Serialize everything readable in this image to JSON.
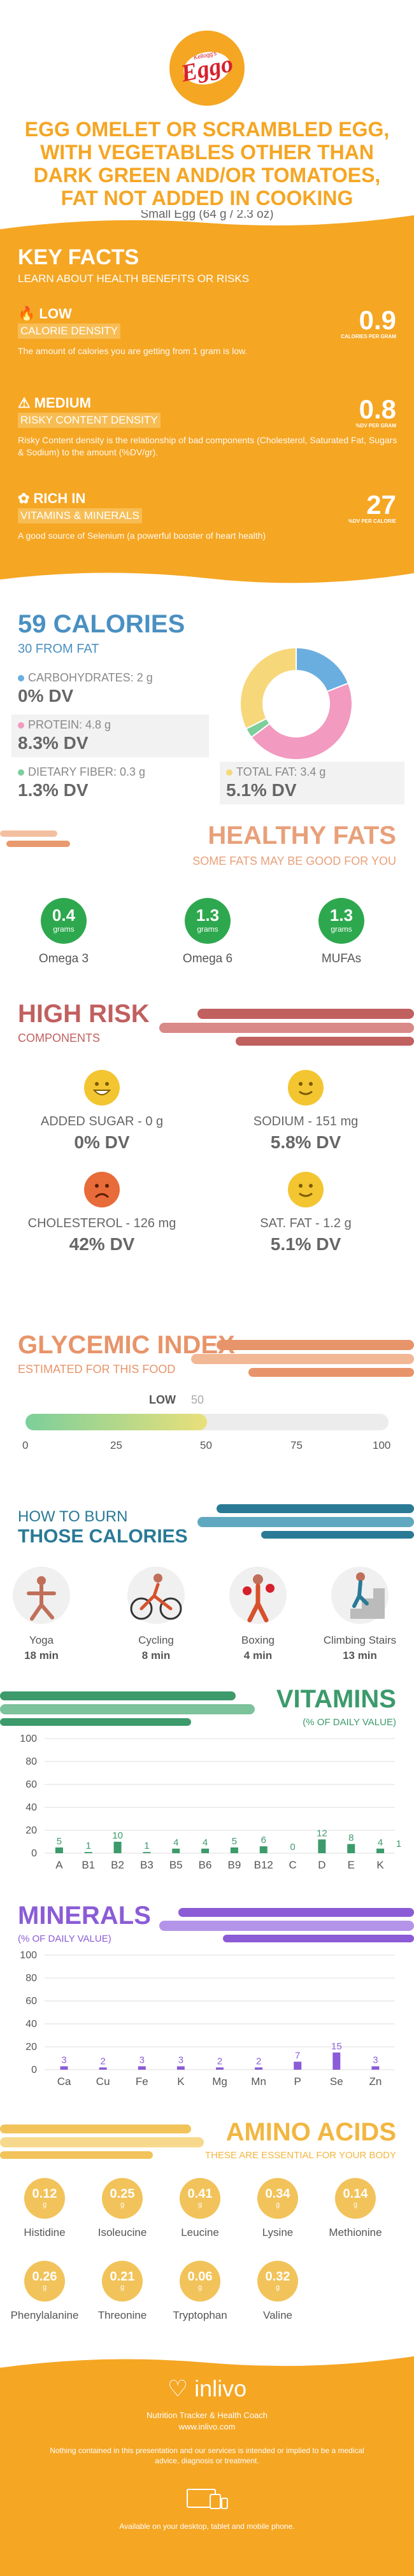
{
  "header": {
    "logo_text": "Eggo",
    "logo_small": "Kellogg's",
    "title": "EGG OMELET OR SCRAMBLED EGG, WITH VEGETABLES OTHER THAN DARK GREEN AND/OR TOMATOES, FAT NOT ADDED IN COOKING",
    "serving": "Small Egg (64 g / 2.3 oz)"
  },
  "key_facts": {
    "title": "KEY FACTS",
    "subtitle": "LEARN ABOUT HEALTH BENEFITS OR RISKS",
    "items": [
      {
        "icon": "flame-icon",
        "level": "LOW",
        "label": "CALORIE DENSITY",
        "desc": "The amount of calories you are getting from 1 gram is low.",
        "value": "0.9",
        "unit": "CALORIES PER GRAM"
      },
      {
        "icon": "warning-icon",
        "level": "MEDIUM",
        "label": "RISKY CONTENT DENSITY",
        "desc": "Risky Content density is the relationship of bad components (Cholesterol, Saturated Fat, Sugars & Sodium) to the amount (%DV/gr).",
        "value": "0.8",
        "unit": "%DV PER GRAM"
      },
      {
        "icon": "leaf-icon",
        "level": "RICH IN",
        "label": "VITAMINS & MINERALS",
        "desc": "A good source of Selenium (a powerful booster of heart health)",
        "value": "27",
        "unit": "%DV PER CALORIE"
      }
    ]
  },
  "calories": {
    "title": "59 CALORIES",
    "subtitle": "30 FROM FAT",
    "macros": [
      {
        "label": "CARBOHYDRATES: 2 g",
        "dv": "0% DV",
        "color": "#6aaee0"
      },
      {
        "label": "PROTEIN: 4.8 g",
        "dv": "8.3% DV",
        "color": "#f29ac0"
      },
      {
        "label": "DIETARY FIBER: 0.3 g",
        "dv": "1.3% DV",
        "color": "#7ccf9b"
      },
      {
        "label": "TOTAL FAT: 3.4 g",
        "dv": "5.1% DV",
        "color": "#f6d77a"
      }
    ]
  },
  "chart_data": {
    "type": "pie",
    "categories": [
      "Carbohydrates",
      "Protein",
      "Dietary Fiber",
      "Total Fat"
    ],
    "values": [
      2,
      4.8,
      0.3,
      3.4
    ],
    "colors": [
      "#6aaee0",
      "#f29ac0",
      "#7ccf9b",
      "#f6d77a"
    ]
  },
  "fats": {
    "title": "HEALTHY FATS",
    "subtitle": "SOME FATS MAY BE GOOD FOR YOU",
    "items": [
      {
        "value": "0.4",
        "unit": "grams",
        "name": "Omega 3"
      },
      {
        "value": "1.3",
        "unit": "grams",
        "name": "Omega 6"
      },
      {
        "value": "1.3",
        "unit": "grams",
        "name": "MUFAs"
      }
    ]
  },
  "risk": {
    "title": "HIGH RISK",
    "subtitle": "COMPONENTS",
    "items": [
      {
        "label": "ADDED SUGAR - 0 g",
        "dv": "0% DV",
        "face": "happy"
      },
      {
        "label": "SODIUM - 151 mg",
        "dv": "5.8% DV",
        "face": "smile"
      },
      {
        "label": "CHOLESTEROL - 126 mg",
        "dv": "42% DV",
        "face": "sad"
      },
      {
        "label": "SAT. FAT - 1.2 g",
        "dv": "5.1% DV",
        "face": "smile"
      }
    ]
  },
  "glycemic": {
    "title": "GLYCEMIC INDEX",
    "subtitle": "ESTIMATED FOR THIS FOOD",
    "level": "LOW",
    "value": 50,
    "value_text": "50",
    "ticks": [
      "0",
      "25",
      "50",
      "75",
      "100"
    ]
  },
  "burn": {
    "title1": "HOW TO BURN",
    "title2": "THOSE CALORIES",
    "items": [
      {
        "name": "Yoga",
        "time": "18 min",
        "icon": "yoga-icon"
      },
      {
        "name": "Cycling",
        "time": "8 min",
        "icon": "cycling-icon"
      },
      {
        "name": "Boxing",
        "time": "4 min",
        "icon": "boxing-icon"
      },
      {
        "name": "Climbing Stairs",
        "time": "13 min",
        "icon": "stairs-icon"
      }
    ]
  },
  "vitamins": {
    "title": "VITAMINS",
    "subtitle": "(% OF DAILY VALUE)",
    "yticks": [
      "100",
      "80",
      "60",
      "40",
      "20",
      "0"
    ],
    "categories": [
      "A",
      "B1",
      "B2",
      "B3",
      "B5",
      "B6",
      "B9",
      "B12",
      "C",
      "D",
      "E",
      "K"
    ],
    "values": [
      5,
      1,
      10,
      1,
      4,
      4,
      5,
      6,
      0,
      12,
      8,
      4
    ],
    "labels": [
      "5",
      "1",
      "10",
      "1",
      "4",
      "4",
      "5",
      "6",
      "0",
      "12",
      "8",
      "4"
    ],
    "extra_label": "1",
    "color": "#3c9a6b"
  },
  "minerals": {
    "title": "MINERALS",
    "subtitle": "(% OF DAILY VALUE)",
    "yticks": [
      "100",
      "80",
      "60",
      "40",
      "20",
      "0"
    ],
    "categories": [
      "Ca",
      "Cu",
      "Fe",
      "K",
      "Mg",
      "Mn",
      "P",
      "Se",
      "Zn"
    ],
    "values": [
      3,
      2,
      3,
      3,
      2,
      2,
      7,
      15,
      3
    ],
    "labels": [
      "3",
      "2",
      "3",
      "3",
      "2",
      "2",
      "7",
      "15",
      "3"
    ],
    "color": "#8b5cd6"
  },
  "amino": {
    "title": "AMINO ACIDS",
    "subtitle": "THESE ARE ESSENTIAL FOR YOUR BODY",
    "items": [
      {
        "value": "0.12",
        "unit": "g",
        "name": "Histidine"
      },
      {
        "value": "0.25",
        "unit": "g",
        "name": "Isoleucine"
      },
      {
        "value": "0.41",
        "unit": "g",
        "name": "Leucine"
      },
      {
        "value": "0.34",
        "unit": "g",
        "name": "Lysine"
      },
      {
        "value": "0.14",
        "unit": "g",
        "name": "Methionine"
      },
      {
        "value": "0.26",
        "unit": "g",
        "name": "Phenylalanine"
      },
      {
        "value": "0.21",
        "unit": "g",
        "name": "Threonine"
      },
      {
        "value": "0.06",
        "unit": "g",
        "name": "Tryptophan"
      },
      {
        "value": "0.32",
        "unit": "g",
        "name": "Valine"
      }
    ]
  },
  "footer": {
    "brand": "inlivo",
    "tagline": "Nutrition Tracker & Health Coach",
    "url": "www.inlivo.com",
    "disclaimer": "Nothing contained in this presentation and our services is intended or implied to be a medical advice, diagnosis or treatment.",
    "available": "Available on your desktop, tablet and mobile phone."
  }
}
